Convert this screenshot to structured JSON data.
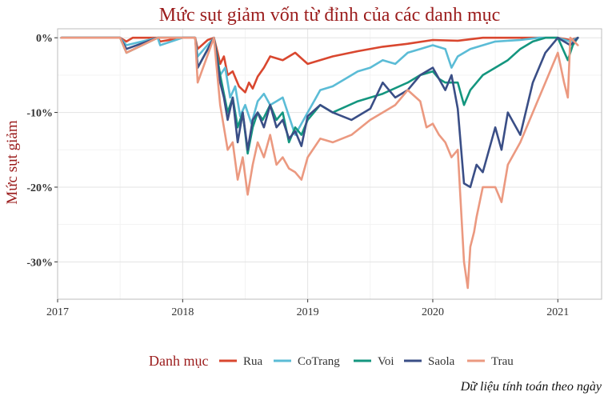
{
  "chart_data": {
    "type": "line",
    "title": "Mức sụt giảm vốn từ đỉnh của các danh mục",
    "xlabel": "",
    "ylabel": "Mức sụt giảm",
    "xlim": [
      2017.0,
      2021.35
    ],
    "ylim": [
      -35,
      1.2
    ],
    "x_ticks": [
      2017,
      2018,
      2019,
      2020,
      2021
    ],
    "x_tick_labels": [
      "2017",
      "2018",
      "2019",
      "2020",
      "2021"
    ],
    "y_ticks": [
      0,
      -10,
      -20,
      -30
    ],
    "y_tick_labels": [
      "0%",
      "-10%",
      "-20%",
      "-30%"
    ],
    "grid": true,
    "legend_title": "Danh mục",
    "legend_position": "bottom",
    "caption": "Dữ liệu tính toán theo ngày",
    "series": [
      {
        "name": "Rua",
        "color": "#d9472f",
        "x": [
          2017.03,
          2017.25,
          2017.5,
          2017.55,
          2017.6,
          2017.8,
          2017.82,
          2018.0,
          2018.1,
          2018.12,
          2018.2,
          2018.25,
          2018.28,
          2018.3,
          2018.33,
          2018.36,
          2018.4,
          2018.45,
          2018.5,
          2018.53,
          2018.56,
          2018.6,
          2018.65,
          2018.7,
          2018.8,
          2018.9,
          2019.0,
          2019.2,
          2019.4,
          2019.6,
          2019.8,
          2020.0,
          2020.2,
          2020.4,
          2020.6,
          2020.8,
          2021.0,
          2021.1,
          2021.16
        ],
        "y": [
          0,
          0,
          0,
          -0.5,
          0,
          0,
          -0.5,
          0,
          0,
          -1.5,
          -0.3,
          0,
          -2,
          -3.5,
          -2.5,
          -5,
          -4.5,
          -6.5,
          -7.3,
          -6,
          -6.8,
          -5.2,
          -4,
          -2.5,
          -3,
          -2,
          -3.5,
          -2.5,
          -1.8,
          -1.2,
          -0.8,
          -0.3,
          -0.4,
          0,
          0,
          0,
          0,
          -0.3,
          0
        ]
      },
      {
        "name": "CoTrang",
        "color": "#5bbcd6",
        "x": [
          2017.03,
          2017.5,
          2017.55,
          2017.8,
          2017.82,
          2018.0,
          2018.1,
          2018.12,
          2018.25,
          2018.3,
          2018.34,
          2018.38,
          2018.42,
          2018.46,
          2018.5,
          2018.55,
          2018.6,
          2018.65,
          2018.7,
          2018.75,
          2018.8,
          2018.9,
          2018.95,
          2019.0,
          2019.05,
          2019.1,
          2019.2,
          2019.3,
          2019.4,
          2019.5,
          2019.6,
          2019.7,
          2019.8,
          2019.9,
          2020.0,
          2020.1,
          2020.15,
          2020.2,
          2020.3,
          2020.5,
          2020.7,
          2020.85,
          2021.0,
          2021.1,
          2021.16
        ],
        "y": [
          0,
          0,
          -1,
          0,
          -1,
          0,
          0,
          -2.5,
          0,
          -5,
          -4,
          -8,
          -6.5,
          -10.5,
          -9,
          -11.5,
          -8.5,
          -7.5,
          -9,
          -8.5,
          -8,
          -13,
          -11.5,
          -10,
          -8.5,
          -7,
          -6.5,
          -5.5,
          -4.5,
          -4,
          -3,
          -3.5,
          -2,
          -1.5,
          -1,
          -1.5,
          -4,
          -2.5,
          -1.5,
          -0.5,
          -0.3,
          0,
          0,
          -0.5,
          0
        ]
      },
      {
        "name": "Voi",
        "color": "#14967f",
        "x": [
          2017.03,
          2017.5,
          2017.55,
          2017.8,
          2018.0,
          2018.1,
          2018.12,
          2018.25,
          2018.3,
          2018.33,
          2018.36,
          2018.4,
          2018.44,
          2018.48,
          2018.52,
          2018.56,
          2018.6,
          2018.64,
          2018.7,
          2018.75,
          2018.8,
          2018.85,
          2018.9,
          2018.95,
          2019.0,
          2019.1,
          2019.2,
          2019.4,
          2019.6,
          2019.8,
          2019.9,
          2020.0,
          2020.05,
          2020.1,
          2020.2,
          2020.25,
          2020.3,
          2020.4,
          2020.5,
          2020.6,
          2020.7,
          2020.8,
          2020.9,
          2021.0,
          2021.08,
          2021.12,
          2021.16
        ],
        "y": [
          0,
          0,
          -2,
          0,
          0,
          0,
          -4,
          0,
          -5,
          -7.5,
          -10,
          -8,
          -12,
          -10,
          -15.5,
          -12,
          -10,
          -11,
          -9,
          -11,
          -10,
          -14,
          -12,
          -13,
          -11,
          -9,
          -10,
          -8.5,
          -7.5,
          -6,
          -5,
          -4.5,
          -5.5,
          -6,
          -6,
          -9,
          -7,
          -5,
          -4,
          -3,
          -1.5,
          -0.5,
          0,
          0,
          -3,
          -1,
          0
        ]
      },
      {
        "name": "Saola",
        "color": "#3a4e86",
        "x": [
          2017.03,
          2017.5,
          2017.55,
          2017.8,
          2018.0,
          2018.1,
          2018.12,
          2018.25,
          2018.3,
          2018.33,
          2018.36,
          2018.4,
          2018.44,
          2018.48,
          2018.52,
          2018.56,
          2018.6,
          2018.65,
          2018.7,
          2018.75,
          2018.8,
          2018.85,
          2018.9,
          2018.95,
          2019.0,
          2019.1,
          2019.2,
          2019.35,
          2019.5,
          2019.6,
          2019.7,
          2019.8,
          2019.9,
          2020.0,
          2020.1,
          2020.15,
          2020.2,
          2020.25,
          2020.3,
          2020.35,
          2020.4,
          2020.5,
          2020.55,
          2020.6,
          2020.7,
          2020.8,
          2020.9,
          2021.0,
          2021.1,
          2021.16
        ],
        "y": [
          0,
          0,
          -1.5,
          0,
          0,
          0,
          -4,
          0,
          -6,
          -8,
          -11,
          -8,
          -14,
          -10,
          -15,
          -11,
          -10,
          -12,
          -9,
          -12,
          -11,
          -13.5,
          -12.5,
          -14.5,
          -10.5,
          -9,
          -10,
          -11,
          -9.5,
          -6,
          -8,
          -7,
          -5,
          -4,
          -7,
          -5,
          -9.5,
          -19.5,
          -20,
          -17,
          -18,
          -12,
          -15,
          -10,
          -13,
          -6,
          -2,
          0,
          -1,
          0
        ]
      },
      {
        "name": "Trau",
        "color": "#eb9980",
        "x": [
          2017.03,
          2017.5,
          2017.55,
          2017.8,
          2018.0,
          2018.1,
          2018.12,
          2018.25,
          2018.3,
          2018.33,
          2018.36,
          2018.4,
          2018.44,
          2018.48,
          2018.52,
          2018.56,
          2018.6,
          2018.65,
          2018.7,
          2018.75,
          2018.8,
          2018.85,
          2018.9,
          2018.95,
          2019.0,
          2019.1,
          2019.2,
          2019.35,
          2019.5,
          2019.6,
          2019.7,
          2019.8,
          2019.9,
          2019.95,
          2020.0,
          2020.05,
          2020.1,
          2020.15,
          2020.2,
          2020.25,
          2020.28,
          2020.3,
          2020.33,
          2020.35,
          2020.4,
          2020.5,
          2020.55,
          2020.6,
          2020.7,
          2020.8,
          2020.9,
          2021.0,
          2021.05,
          2021.08,
          2021.1,
          2021.16
        ],
        "y": [
          0,
          0,
          -2,
          0,
          0,
          0,
          -6,
          0,
          -9,
          -12,
          -15,
          -14,
          -19,
          -16,
          -21,
          -17,
          -14,
          -16,
          -13,
          -17,
          -16,
          -17.5,
          -18,
          -19,
          -16,
          -13.5,
          -14,
          -13,
          -11,
          -10,
          -9,
          -7,
          -8.5,
          -12,
          -11.5,
          -13,
          -14,
          -16,
          -15,
          -30,
          -33.5,
          -28,
          -26,
          -24,
          -20,
          -20,
          -22,
          -17,
          -14,
          -10,
          -6,
          -2,
          -6,
          -8,
          0,
          -1
        ]
      }
    ]
  }
}
